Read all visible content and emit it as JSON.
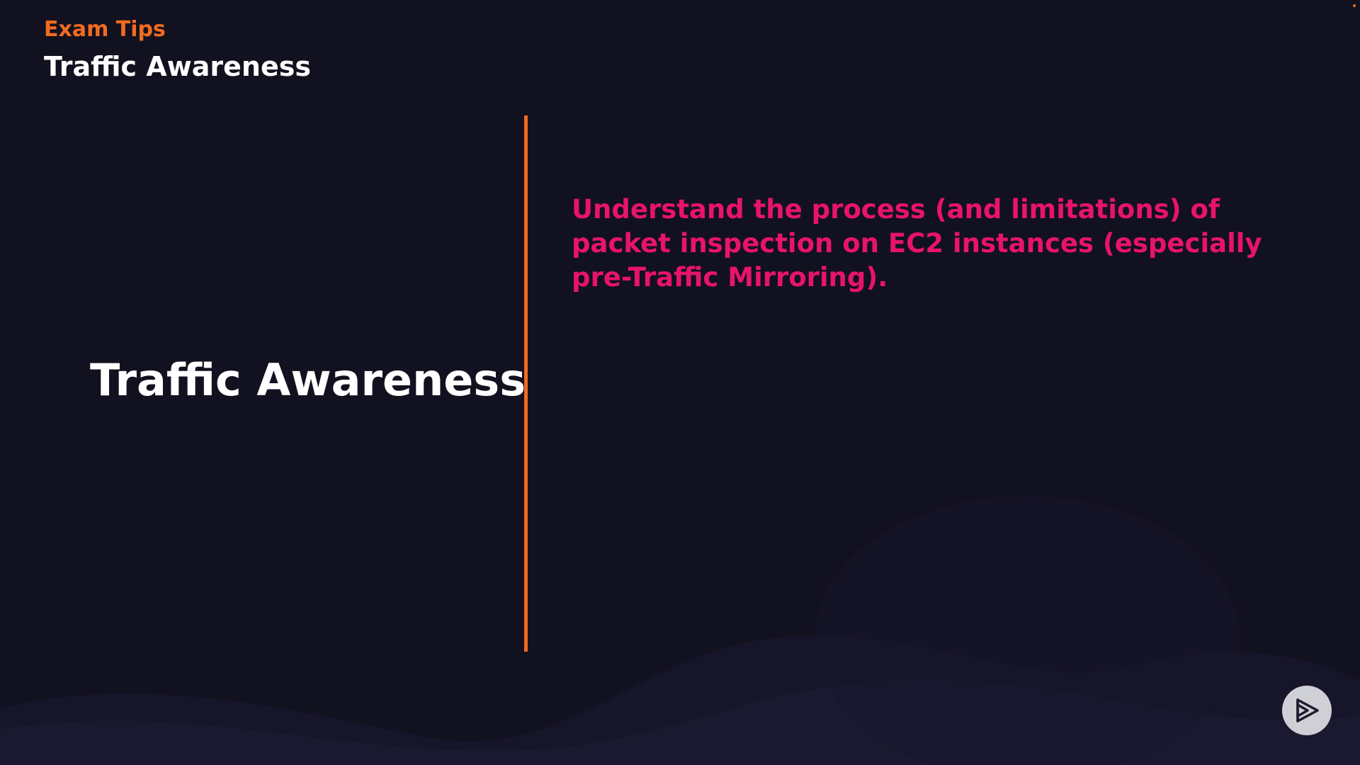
{
  "header": {
    "eyebrow": "Exam Tips",
    "title": "Traffic Awareness"
  },
  "main": {
    "section_heading": "Traffic Awareness",
    "tip": "Understand the process (and limitations) of packet inspection on EC2 instances (especially pre-Traffic Mirroring)."
  },
  "controls": {
    "play_icon": "play-logo-icon"
  },
  "colors": {
    "background": "#12111f",
    "accent_orange": "#f26b21",
    "accent_pink": "#e8136c",
    "text_white": "#ffffff"
  }
}
